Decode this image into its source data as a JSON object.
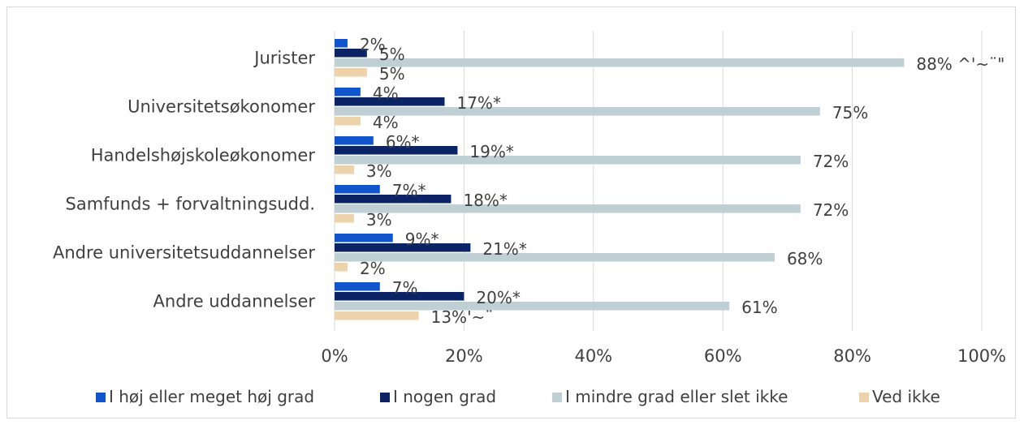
{
  "chart_data": {
    "type": "bar",
    "orientation": "horizontal",
    "title": "",
    "xlabel": "",
    "ylabel": "",
    "xlim": [
      0,
      100
    ],
    "grid": true,
    "legend_position": "bottom",
    "categories": [
      "Jurister",
      "Universitetsøkonomer",
      "Handelshøjskoleøkonomer",
      "Samfunds + forvaltningsudd.",
      "Andre universitetsuddannelser",
      "Andre uddannelser"
    ],
    "x_ticks": [
      "0%",
      "20%",
      "40%",
      "60%",
      "80%",
      "100%"
    ],
    "series": [
      {
        "name": "I høj eller meget høj grad",
        "color": "#1155cc",
        "values": [
          2,
          4,
          6,
          7,
          9,
          7
        ],
        "labels": [
          "2%",
          "4%",
          "6%*",
          "7%*",
          "9%*",
          "7%"
        ]
      },
      {
        "name": "I nogen grad",
        "color": "#0c2466",
        "values": [
          5,
          17,
          19,
          18,
          21,
          20
        ],
        "labels": [
          "5%",
          "17%*",
          "19%*",
          "18%*",
          "21%*",
          "20%*"
        ]
      },
      {
        "name": "I mindre grad eller slet ikke",
        "color": "#bfcfd3",
        "values": [
          88,
          75,
          72,
          72,
          68,
          61
        ],
        "labels": [
          "88% ^'~¨\"",
          "75%",
          "72%",
          "72%",
          "68%",
          "61%"
        ]
      },
      {
        "name": "Ved ikke",
        "color": "#ecd3ab",
        "values": [
          5,
          4,
          3,
          3,
          2,
          13
        ],
        "labels": [
          "5%",
          "4%",
          "3%",
          "3%",
          "2%",
          "13%'~¨"
        ]
      }
    ]
  }
}
